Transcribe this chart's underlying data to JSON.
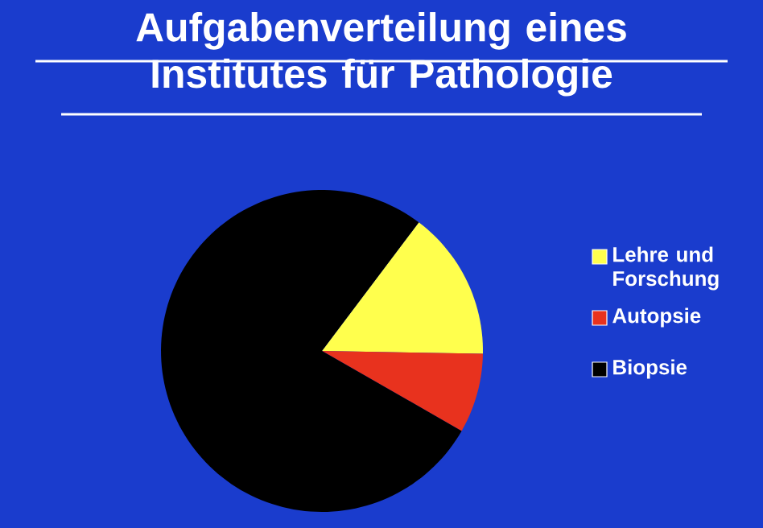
{
  "chart_data": {
    "type": "pie",
    "title": "Aufgabenverteilung eines Institutes für Pathologie",
    "categories": [
      "Lehre und Forschung",
      "Autopsie",
      "Biopsie"
    ],
    "values": [
      15,
      8,
      77
    ],
    "colors": [
      "#ffff4d",
      "#e8321e",
      "#000000"
    ],
    "legend": "right"
  }
}
